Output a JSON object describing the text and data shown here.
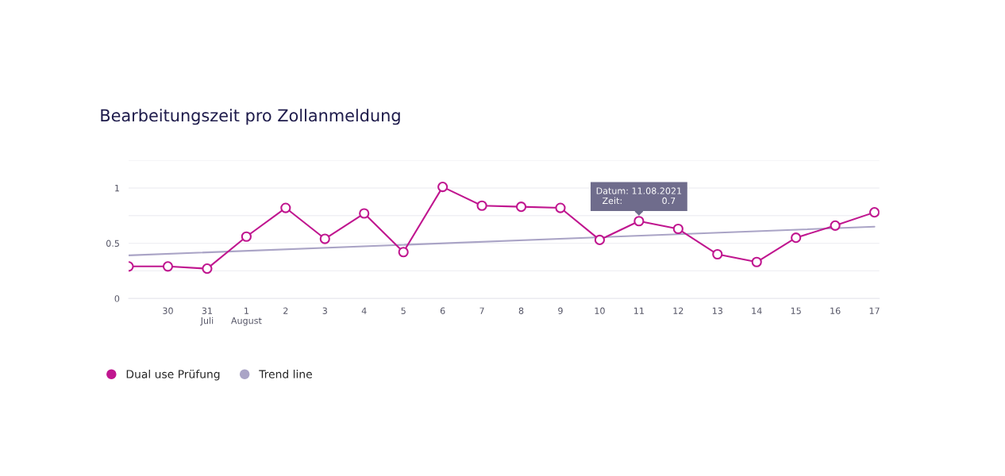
{
  "chart_data": {
    "type": "line",
    "title": "Bearbeitungszeit pro Zollanmeldung",
    "xlim": [
      "2021-07-29",
      "2021-08-17T03:00"
    ],
    "xticks": [
      {
        "value": "2021-07-30",
        "label": "30"
      },
      {
        "value": "2021-07-31",
        "label": "31\nJuli"
      },
      {
        "value": "2021-08-01",
        "label": "1\nAugust"
      },
      {
        "value": "2021-08-02",
        "label": "2"
      },
      {
        "value": "2021-08-03",
        "label": "3"
      },
      {
        "value": "2021-08-04",
        "label": "4"
      },
      {
        "value": "2021-08-05",
        "label": "5"
      },
      {
        "value": "2021-08-06",
        "label": "6"
      },
      {
        "value": "2021-08-07",
        "label": "7"
      },
      {
        "value": "2021-08-08",
        "label": "8"
      },
      {
        "value": "2021-08-09",
        "label": "9"
      },
      {
        "value": "2021-08-10",
        "label": "10"
      },
      {
        "value": "2021-08-11",
        "label": "11"
      },
      {
        "value": "2021-08-12",
        "label": "12"
      },
      {
        "value": "2021-08-13",
        "label": "13"
      },
      {
        "value": "2021-08-14",
        "label": "14"
      },
      {
        "value": "2021-08-15",
        "label": "15"
      },
      {
        "value": "2021-08-16",
        "label": "16"
      },
      {
        "value": "2021-08-17",
        "label": "17"
      }
    ],
    "ylim": [
      0,
      1.25
    ],
    "yticks": [
      0,
      {
        "value": 0.25,
        "label": null
      },
      0.5,
      {
        "value": 0.75,
        "label": null
      },
      1,
      {
        "value": 1.25,
        "label": null
      }
    ],
    "grid": "y",
    "legend": "bottom left",
    "series": [
      {
        "name": "Dual use Prüfung",
        "color": "#c0168f",
        "marker": "circle",
        "x": [
          "2021-07-29",
          "2021-07-30",
          "2021-07-31",
          "2021-08-01",
          "2021-08-02",
          "2021-08-03",
          "2021-08-04",
          "2021-08-05",
          "2021-08-06",
          "2021-08-07",
          "2021-08-08",
          "2021-08-09",
          "2021-08-10",
          "2021-08-11",
          "2021-08-12",
          "2021-08-13",
          "2021-08-14",
          "2021-08-15",
          "2021-08-16",
          "2021-08-17"
        ],
        "values": [
          0.29,
          0.29,
          0.27,
          0.56,
          0.82,
          0.54,
          0.77,
          0.42,
          1.01,
          0.84,
          0.83,
          0.82,
          0.53,
          0.7,
          0.63,
          0.4,
          0.33,
          0.55,
          0.66,
          0.78
        ]
      },
      {
        "name": "Trend line",
        "color": "#aaa4c6",
        "marker": "none",
        "x": [
          "2021-07-29",
          "2021-08-17"
        ],
        "values": [
          0.39,
          0.65
        ]
      }
    ],
    "annotations": [
      {
        "text": "Datum: 11.08.2021\nZeit:              0.7",
        "x": "2021-08-11",
        "y": 0.7
      }
    ]
  }
}
